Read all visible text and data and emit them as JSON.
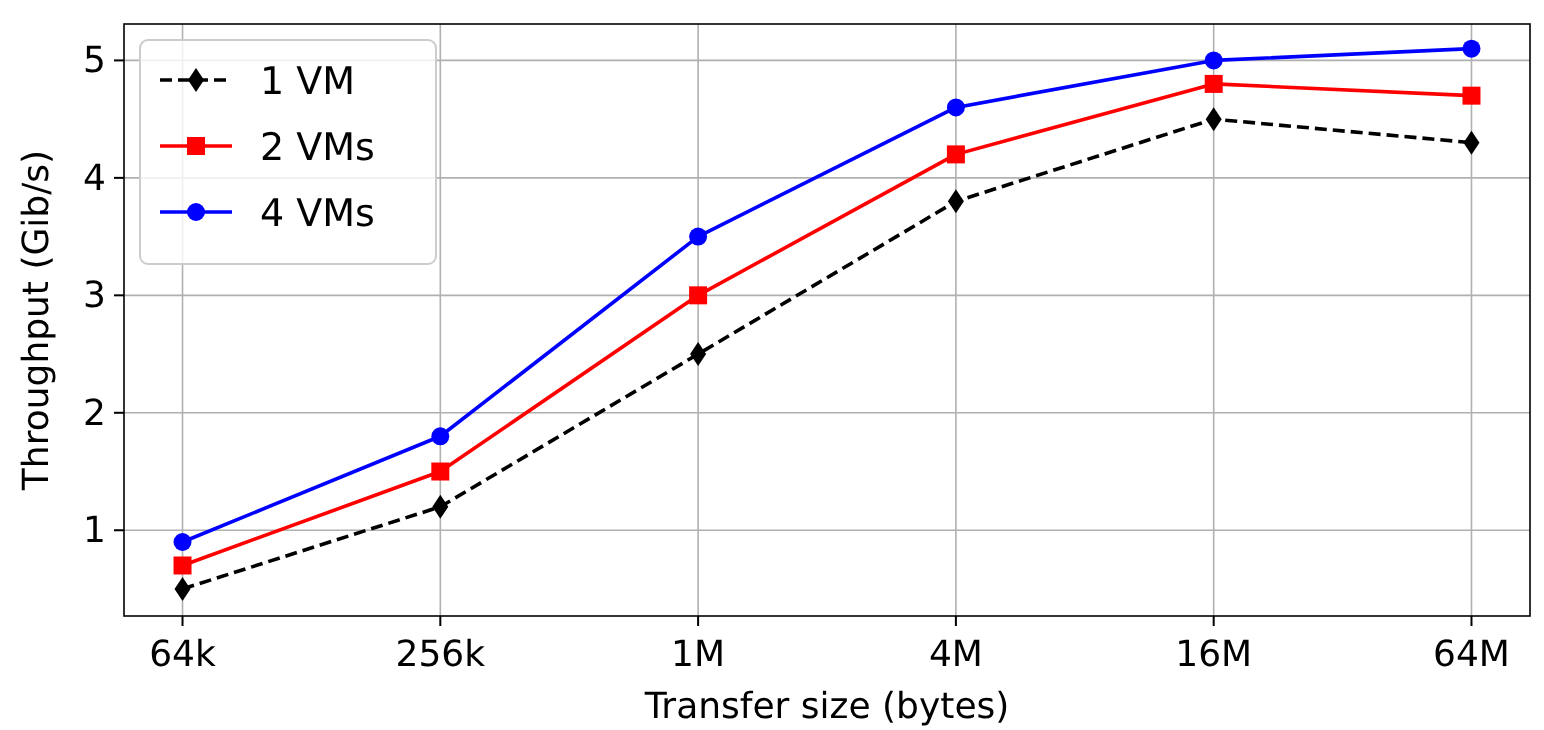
{
  "chart_data": {
    "type": "line",
    "xlabel": "Transfer size (bytes)",
    "ylabel": "Throughput (Gib/s)",
    "categories": [
      "64k",
      "256k",
      "1M",
      "4M",
      "16M",
      "64M"
    ],
    "ylim": [
      0.27,
      5.31
    ],
    "yticks": [
      1,
      2,
      3,
      4,
      5
    ],
    "grid": true,
    "legend": "top left",
    "series": [
      {
        "name": "1 VM",
        "color": "#000000",
        "marker": "diamond",
        "line_style": "dashed",
        "values": [
          0.5,
          1.2,
          2.5,
          3.8,
          4.5,
          4.3
        ]
      },
      {
        "name": "2 VMs",
        "color": "#ff0000",
        "marker": "square",
        "line_style": "solid",
        "values": [
          0.7,
          1.5,
          3.0,
          4.2,
          4.8,
          4.7
        ]
      },
      {
        "name": "4 VMs",
        "color": "#0000ff",
        "marker": "circle",
        "line_style": "solid",
        "values": [
          0.9,
          1.8,
          3.5,
          4.6,
          5.0,
          5.1
        ]
      }
    ]
  }
}
